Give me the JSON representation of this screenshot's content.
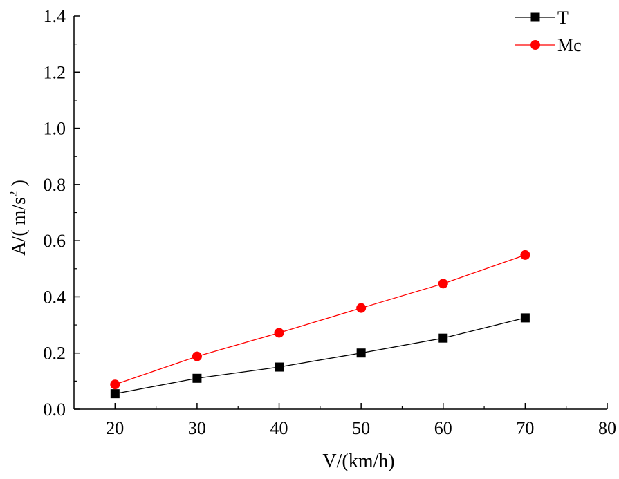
{
  "chart_data": {
    "type": "line",
    "title": "",
    "xlabel": "V/(km/h)",
    "ylabel": {
      "prefix": "A/( m/s",
      "superscript": "2",
      "suffix": " )"
    },
    "xlim": [
      15,
      80
    ],
    "ylim": [
      0.0,
      1.4
    ],
    "xticks": [
      20,
      30,
      40,
      50,
      60,
      70,
      80
    ],
    "yticks": [
      0.0,
      0.2,
      0.4,
      0.6,
      0.8,
      1.0,
      1.2,
      1.4
    ],
    "xtick_labels": [
      "20",
      "30",
      "40",
      "50",
      "60",
      "70",
      "80"
    ],
    "ytick_labels": [
      "0.0",
      "0.2",
      "0.4",
      "0.6",
      "0.8",
      "1.0",
      "1.2",
      "1.4"
    ],
    "grid": false,
    "legend_position": "top-right",
    "x": [
      20,
      30,
      40,
      50,
      60,
      70
    ],
    "series": [
      {
        "name": "T",
        "values": [
          0.055,
          0.11,
          0.15,
          0.2,
          0.253,
          0.325
        ],
        "color": "#000000",
        "marker": "square"
      },
      {
        "name": "Mc",
        "values": [
          0.088,
          0.188,
          0.272,
          0.36,
          0.447,
          0.549
        ],
        "color": "#ff0000",
        "marker": "circle"
      }
    ]
  }
}
